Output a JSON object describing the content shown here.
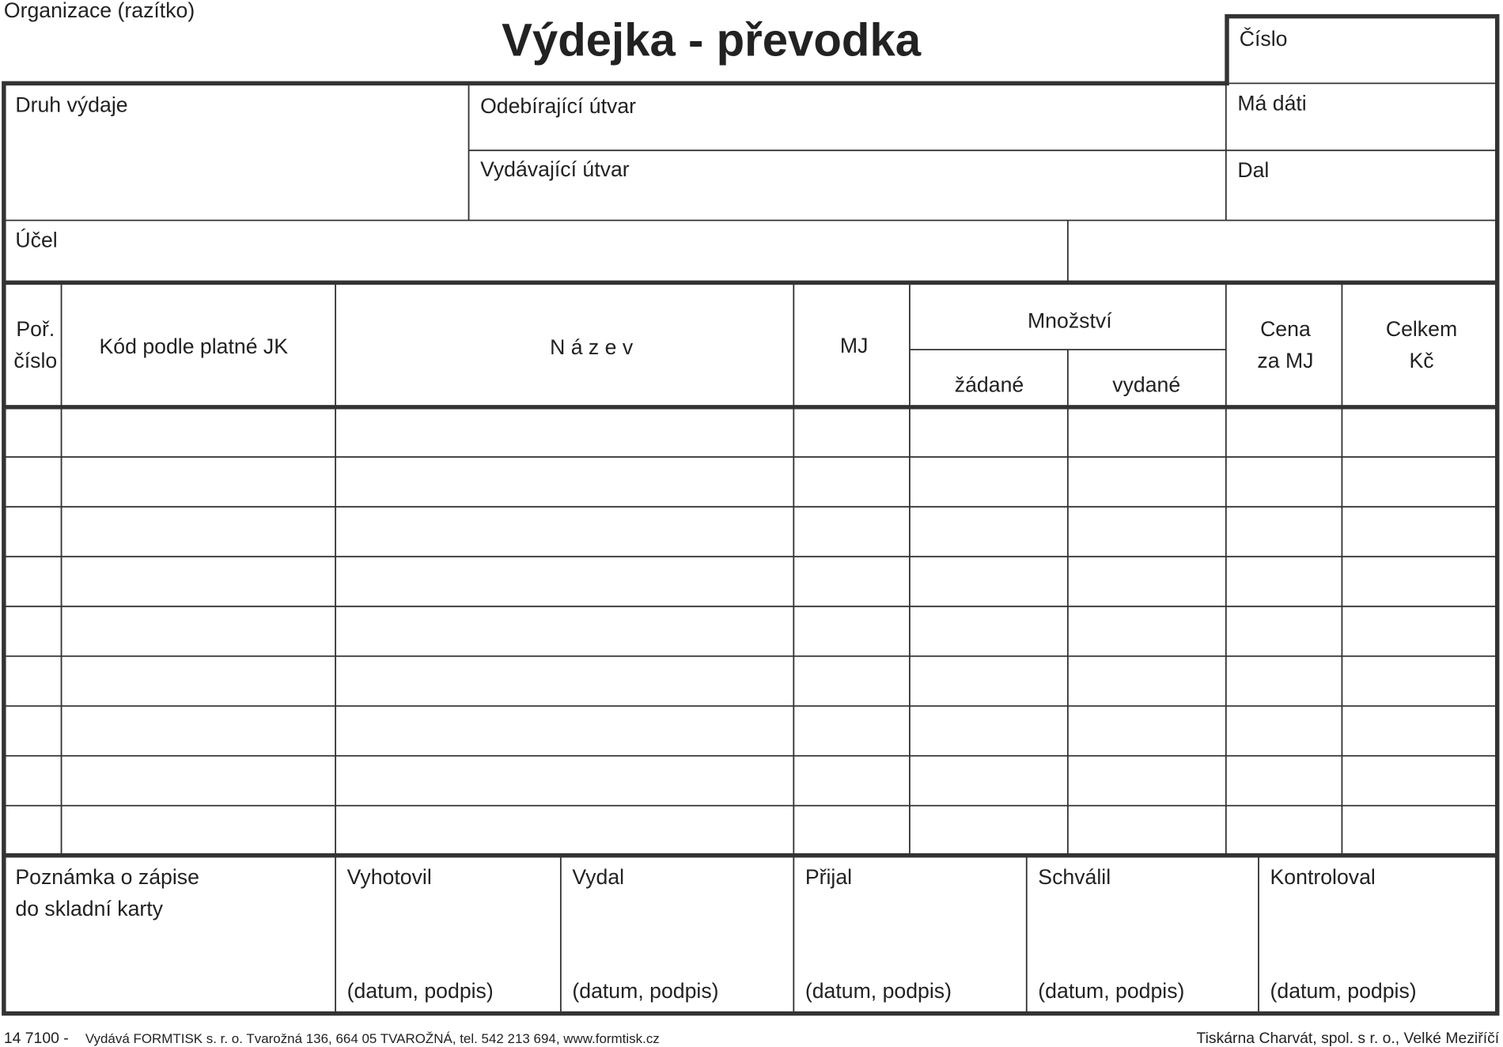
{
  "header": {
    "organization": "Organizace (razítko)",
    "title": "Výdejka - převodka",
    "number_label": "Číslo"
  },
  "fields": {
    "issue_type": "Druh výdaje",
    "receiving_unit": "Odebírající útvar",
    "issuing_unit": "Vydávající útvar",
    "debit": "Má dáti",
    "credit": "Dal",
    "purpose": "Účel"
  },
  "table": {
    "columns": {
      "order_1": "Poř.",
      "order_2": "číslo",
      "code": "Kód podle platné JK",
      "name": "N á z e v",
      "unit": "MJ",
      "quantity": "Množství",
      "requested": "žádané",
      "issued": "vydané",
      "price_1": "Cena",
      "price_2": "za MJ",
      "total_1": "Celkem",
      "total_2": "Kč"
    }
  },
  "signatures": {
    "note_1": "Poznámka o zápise",
    "note_2": "do skladní karty",
    "items": [
      {
        "label": "Vyhotovil",
        "hint": "(datum, podpis)"
      },
      {
        "label": "Vydal",
        "hint": "(datum, podpis)"
      },
      {
        "label": "Přijal",
        "hint": "(datum, podpis)"
      },
      {
        "label": "Schválil",
        "hint": "(datum, podpis)"
      },
      {
        "label": "Kontroloval",
        "hint": "(datum, podpis)"
      }
    ]
  },
  "footer": {
    "code": "14 7100 -",
    "publisher": "Vydává FORMTISK s. r. o. Tvarožná 136, 664 05 TVAROŽNÁ, tel. 542 213 694, www.formtisk.cz",
    "printer": "Tiskárna Charvát, spol. s r. o., Velké Meziříčí"
  }
}
